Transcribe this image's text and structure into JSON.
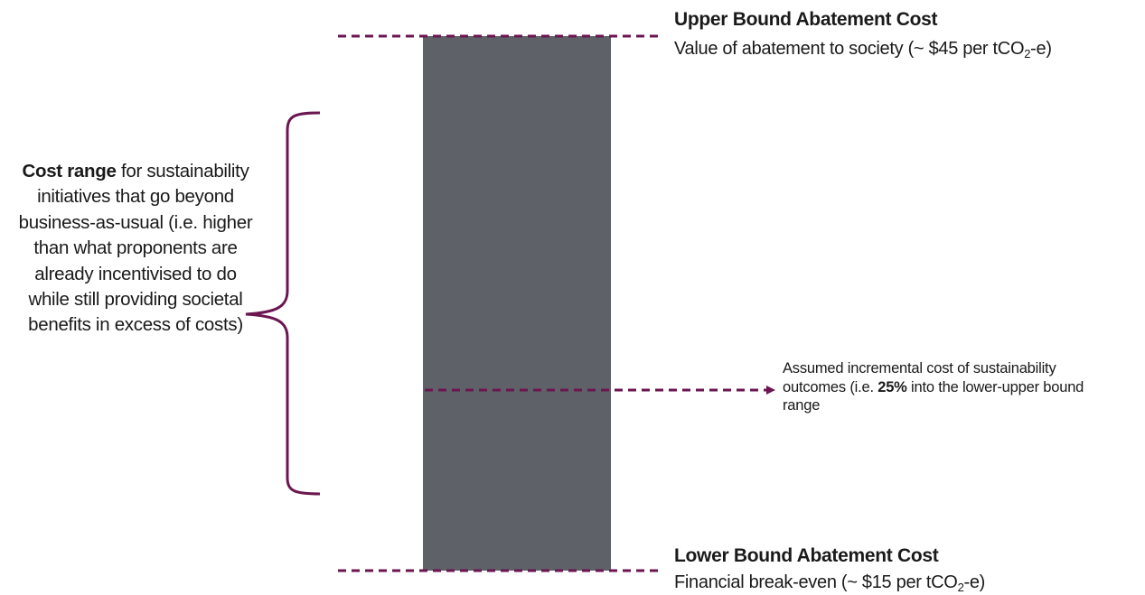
{
  "colors": {
    "bar": "#5f6168",
    "accent": "#6b1650",
    "text": "#1a1a1a"
  },
  "upper_bound": {
    "title": "Upper Bound Abatement Cost",
    "description_before": "Value of abatement to society (~ $45 per tCO",
    "description_sub": "2",
    "description_after": "-e)"
  },
  "lower_bound": {
    "title": "Lower Bound Abatement Cost",
    "description_before": "Financial break-even (~ $15 per tCO",
    "description_sub": "2",
    "description_after": "-e)"
  },
  "cost_range": {
    "bold": "Cost range",
    "text": " for sustainability initiatives that go beyond business-as-usual (i.e. higher than what proponents are already incentivised to do while still providing societal benefits in excess of costs)"
  },
  "assumed_cost": {
    "before": "Assumed incremental cost of sustainability outcomes (i.e. ",
    "bold": "25%",
    "after": " into the lower-upper bound range"
  }
}
